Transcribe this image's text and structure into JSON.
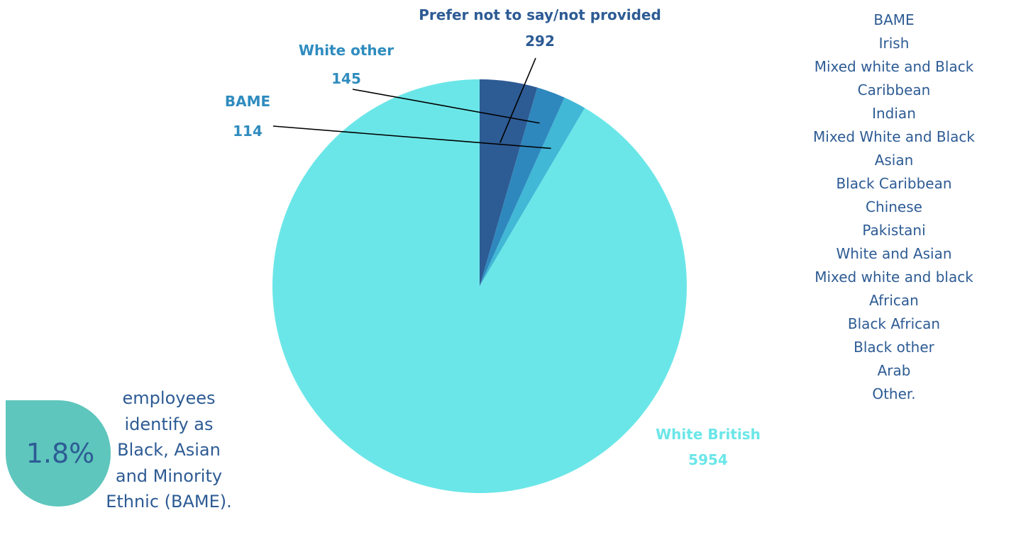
{
  "chart_data": {
    "type": "pie",
    "start_angle_deg": 0,
    "direction": "counterclockwise",
    "slices": [
      {
        "label": "White British",
        "value": 5954,
        "color": "#6be6e8",
        "label_color": "#6be6e8"
      },
      {
        "label": "BAME",
        "value": 114,
        "color": "#41b8d6",
        "label_color": "#2f8cbf"
      },
      {
        "label": "White other",
        "value": 145,
        "color": "#2e88bd",
        "label_color": "#2f8cbf"
      },
      {
        "label": "Prefer not to say/not provided",
        "value": 292,
        "color": "#2d5b94",
        "label_color": "#2d5b94"
      }
    ]
  },
  "legend": {
    "items": [
      "BAME",
      "Irish",
      "Mixed white and Black",
      "Caribbean",
      "Indian",
      "Mixed White and Black",
      "Asian",
      "Black Caribbean",
      "Chinese",
      "Pakistani",
      "White and Asian",
      "Mixed white and black",
      "African",
      "Black African",
      "Black other",
      "Arab",
      "Other."
    ]
  },
  "stat": {
    "value": "1.8%",
    "lines": [
      "employees",
      "identify as",
      "Black, Asian",
      "and Minority",
      "Ethnic (BAME)."
    ]
  },
  "colors": {
    "text_blue": "#2d5b94",
    "badge_teal": "#5ec6bd"
  }
}
